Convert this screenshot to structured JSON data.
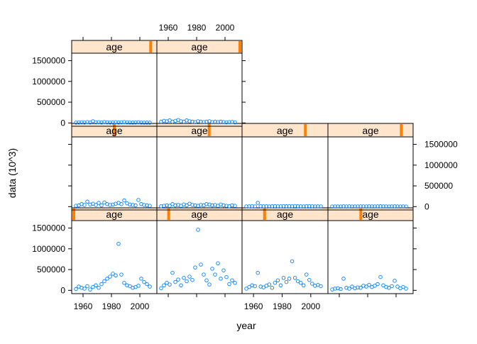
{
  "chart_data": {
    "type": "scatter",
    "xlabel": "year",
    "ylabel": "data (10^3)",
    "xlim": [
      1952,
      2012
    ],
    "ylim": [
      -80000,
      1680000
    ],
    "x_ticks": [
      1960,
      1980,
      2000
    ],
    "x_tick_labels": [
      "1960",
      "1980",
      "2000"
    ],
    "y_ticks": [
      0,
      500000,
      1000000,
      1500000
    ],
    "y_tick_labels": [
      "0",
      "500000",
      "1000000",
      "1500000"
    ],
    "strip_label": "age",
    "colors": {
      "points": "#0080ff",
      "strip_bg": "#ffe5cc",
      "strip_marker": "#ff7f00",
      "frame": "#000000"
    },
    "grid": false,
    "panels": [
      {
        "row": 3,
        "col": 1,
        "strip_level": 0.0,
        "x": [
          1955,
          1957,
          1959,
          1961,
          1963,
          1965,
          1967,
          1969,
          1971,
          1973,
          1975,
          1977,
          1979,
          1981,
          1983,
          1985,
          1987,
          1989,
          1991,
          1993,
          1995,
          1997,
          1999,
          2001,
          2003,
          2005,
          2007
        ],
        "y": [
          30000,
          90000,
          60000,
          40000,
          100000,
          20000,
          80000,
          120000,
          60000,
          150000,
          220000,
          280000,
          330000,
          400000,
          360000,
          1120000,
          380000,
          180000,
          120000,
          100000,
          60000,
          80000,
          110000,
          280000,
          200000,
          150000,
          90000
        ]
      },
      {
        "row": 3,
        "col": 2,
        "strip_level": 0.12,
        "x": [
          1955,
          1957,
          1959,
          1961,
          1963,
          1965,
          1967,
          1969,
          1971,
          1973,
          1975,
          1977,
          1979,
          1981,
          1983,
          1985,
          1987,
          1989,
          1991,
          1993,
          1995,
          1997,
          1999,
          2001,
          2003,
          2005,
          2007
        ],
        "y": [
          50000,
          120000,
          180000,
          140000,
          420000,
          200000,
          260000,
          120000,
          300000,
          220000,
          330000,
          250000,
          550000,
          1460000,
          620000,
          380000,
          240000,
          140000,
          520000,
          380000,
          650000,
          280000,
          480000,
          320000,
          150000,
          240000,
          180000
        ]
      },
      {
        "row": 3,
        "col": 3,
        "strip_level": 0.25,
        "x": [
          1955,
          1957,
          1959,
          1961,
          1963,
          1965,
          1967,
          1969,
          1971,
          1973,
          1975,
          1977,
          1979,
          1981,
          1983,
          1985,
          1987,
          1989,
          1991,
          1993,
          1995,
          1997,
          1999,
          2001,
          2003,
          2005,
          2007
        ],
        "y": [
          40000,
          80000,
          120000,
          100000,
          420000,
          90000,
          70000,
          110000,
          140000,
          60000,
          180000,
          240000,
          120000,
          300000,
          200000,
          280000,
          700000,
          300000,
          220000,
          180000,
          120000,
          380000,
          250000,
          160000,
          110000,
          130000,
          100000
        ]
      },
      {
        "row": 3,
        "col": 4,
        "strip_level": 0.38,
        "x": [
          1955,
          1957,
          1959,
          1961,
          1963,
          1965,
          1967,
          1969,
          1971,
          1973,
          1975,
          1977,
          1979,
          1981,
          1983,
          1985,
          1987,
          1989,
          1991,
          1993,
          1995,
          1997,
          1999,
          2001,
          2003,
          2005,
          2007
        ],
        "y": [
          20000,
          40000,
          50000,
          30000,
          280000,
          60000,
          40000,
          90000,
          50000,
          70000,
          60000,
          110000,
          90000,
          130000,
          80000,
          110000,
          150000,
          320000,
          120000,
          80000,
          60000,
          100000,
          230000,
          90000,
          50000,
          80000,
          40000
        ]
      },
      {
        "row": 2,
        "col": 1,
        "strip_level": 0.5,
        "x": [
          1955,
          1957,
          1959,
          1961,
          1963,
          1965,
          1967,
          1969,
          1971,
          1973,
          1975,
          1977,
          1979,
          1981,
          1983,
          1985,
          1987,
          1989,
          1991,
          1993,
          1995,
          1997,
          1999,
          2001,
          2003,
          2005,
          2007
        ],
        "y": [
          20000,
          30000,
          60000,
          40000,
          120000,
          50000,
          70000,
          40000,
          90000,
          30000,
          100000,
          60000,
          40000,
          50000,
          70000,
          90000,
          60000,
          150000,
          80000,
          50000,
          40000,
          30000,
          160000,
          60000,
          40000,
          30000,
          20000
        ]
      },
      {
        "row": 2,
        "col": 2,
        "strip_level": 0.62,
        "x": [
          1955,
          1957,
          1959,
          1961,
          1963,
          1965,
          1967,
          1969,
          1971,
          1973,
          1975,
          1977,
          1979,
          1981,
          1983,
          1985,
          1987,
          1989,
          1991,
          1993,
          1995,
          1997,
          1999,
          2001,
          2003,
          2005,
          2007
        ],
        "y": [
          10000,
          20000,
          30000,
          20000,
          60000,
          30000,
          40000,
          20000,
          50000,
          30000,
          70000,
          40000,
          30000,
          20000,
          40000,
          30000,
          60000,
          50000,
          30000,
          40000,
          20000,
          50000,
          30000,
          20000,
          10000,
          30000,
          20000
        ]
      },
      {
        "row": 2,
        "col": 3,
        "strip_level": 0.75,
        "x": [
          1955,
          1957,
          1959,
          1961,
          1963,
          1965,
          1967,
          1969,
          1971,
          1973,
          1975,
          1977,
          1979,
          1981,
          1983,
          1985,
          1987,
          1989,
          1991,
          1993,
          1995,
          1997,
          1999,
          2001,
          2003,
          2005,
          2007
        ],
        "y": [
          5000,
          8000,
          10000,
          6000,
          90000,
          12000,
          8000,
          10000,
          6000,
          9000,
          11000,
          8000,
          7000,
          12000,
          9000,
          10000,
          8000,
          15000,
          9000,
          7000,
          6000,
          10000,
          12000,
          8000,
          6000,
          7000,
          5000
        ]
      },
      {
        "row": 2,
        "col": 4,
        "strip_level": 0.88,
        "x": [
          1955,
          1957,
          1959,
          1961,
          1963,
          1965,
          1967,
          1969,
          1971,
          1973,
          1975,
          1977,
          1979,
          1981,
          1983,
          1985,
          1987,
          1989,
          1991,
          1993,
          1995,
          1997,
          1999,
          2001,
          2003,
          2005,
          2007
        ],
        "y": [
          3000,
          5000,
          6000,
          4000,
          8000,
          5000,
          7000,
          4000,
          6000,
          5000,
          7000,
          6000,
          5000,
          8000,
          6000,
          5000,
          7000,
          9000,
          6000,
          5000,
          4000,
          6000,
          8000,
          5000,
          4000,
          5000,
          3000
        ]
      },
      {
        "row": 1,
        "col": 1,
        "strip_level": 0.95,
        "x": [
          1955,
          1957,
          1959,
          1961,
          1963,
          1965,
          1967,
          1969,
          1971,
          1973,
          1975,
          1977,
          1979,
          1981,
          1983,
          1985,
          1987,
          1989,
          1991,
          1993,
          1995,
          1997,
          1999,
          2001,
          2003,
          2005,
          2007
        ],
        "y": [
          8000,
          12000,
          15000,
          10000,
          20000,
          12000,
          40000,
          15000,
          18000,
          12000,
          20000,
          15000,
          10000,
          14000,
          18000,
          12000,
          16000,
          20000,
          14000,
          10000,
          9000,
          12000,
          16000,
          10000,
          8000,
          9000,
          7000
        ]
      },
      {
        "row": 1,
        "col": 2,
        "strip_level": 1.0,
        "x": [
          1955,
          1957,
          1959,
          1961,
          1963,
          1965,
          1967,
          1969,
          1971,
          1973,
          1975,
          1977,
          1979,
          1981,
          1983,
          1985,
          1987,
          1989,
          1991,
          1993,
          1995,
          1997,
          1999,
          2001,
          2003,
          2005,
          2007
        ],
        "y": [
          30000,
          50000,
          40000,
          60000,
          30000,
          50000,
          70000,
          40000,
          30000,
          60000,
          40000,
          30000,
          20000,
          40000,
          30000,
          20000,
          30000,
          40000,
          20000,
          30000,
          20000,
          30000,
          20000,
          15000,
          20000,
          25000,
          15000
        ]
      }
    ]
  }
}
